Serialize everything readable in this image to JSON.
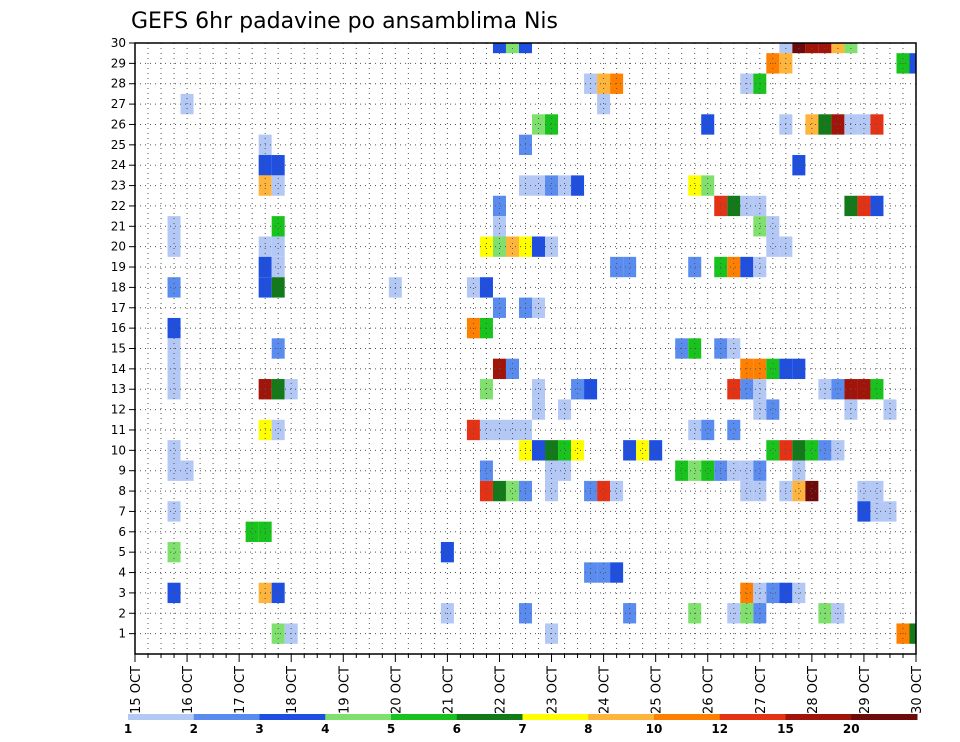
{
  "chart_data": {
    "type": "heatmap",
    "title": "GEFS 6hr padavine po ansamblima Nis",
    "xlabel": "",
    "ylabel": "",
    "x_ticks": [
      "15 OCT",
      "16 OCT",
      "17 OCT",
      "18 OCT",
      "19 OCT",
      "20 OCT",
      "21 OCT",
      "22 OCT",
      "23 OCT",
      "24 OCT",
      "25 OCT",
      "26 OCT",
      "27 OCT",
      "28 OCT",
      "29 OCT",
      "30 OCT"
    ],
    "y_ticks": [
      "1",
      "2",
      "3",
      "4",
      "5",
      "6",
      "7",
      "8",
      "9",
      "10",
      "11",
      "12",
      "13",
      "14",
      "15",
      "16",
      "17",
      "18",
      "19",
      "20",
      "21",
      "22",
      "23",
      "24",
      "25",
      "26",
      "27",
      "28",
      "29",
      "30"
    ],
    "xlim": [
      0,
      15
    ],
    "ylim": [
      0,
      30
    ],
    "x_step_days": 0.25,
    "grid": true,
    "colorbar": {
      "ticks": [
        "1",
        "2",
        "3",
        "4",
        "5",
        "6",
        "7",
        "8",
        "10",
        "12",
        "15",
        "20"
      ],
      "colors": [
        "#b4c8f5",
        "#5a8cf0",
        "#1f4fe0",
        "#7fe06e",
        "#19c31e",
        "#127a19",
        "#ffff00",
        "#ffb43c",
        "#ff7f00",
        "#e63214",
        "#a0140a",
        "#6e0a0a"
      ],
      "position": "bottom"
    },
    "cells": [
      [
        7.0,
        30,
        3
      ],
      [
        7.25,
        30,
        4
      ],
      [
        7.5,
        30,
        3
      ],
      [
        12.5,
        30,
        1
      ],
      [
        12.75,
        30,
        12
      ],
      [
        13.0,
        30,
        11
      ],
      [
        13.25,
        30,
        11
      ],
      [
        13.5,
        30,
        8
      ],
      [
        13.75,
        30,
        4
      ],
      [
        12.25,
        29,
        9
      ],
      [
        12.5,
        29,
        8
      ],
      [
        14.75,
        29,
        5
      ],
      [
        15.0,
        29,
        3
      ],
      [
        8.75,
        28,
        1
      ],
      [
        9.0,
        28,
        8
      ],
      [
        9.25,
        28,
        9
      ],
      [
        11.75,
        28,
        1
      ],
      [
        12.0,
        28,
        5
      ],
      [
        1.0,
        27,
        1
      ],
      [
        9.0,
        27,
        1
      ],
      [
        7.75,
        26,
        4
      ],
      [
        8.0,
        26,
        5
      ],
      [
        11.0,
        26,
        3
      ],
      [
        12.5,
        26,
        1
      ],
      [
        13.0,
        26,
        8
      ],
      [
        13.25,
        26,
        6
      ],
      [
        13.5,
        26,
        11
      ],
      [
        13.75,
        26,
        1
      ],
      [
        14.0,
        26,
        1
      ],
      [
        14.25,
        26,
        10
      ],
      [
        2.5,
        25,
        1
      ],
      [
        7.5,
        25,
        2
      ],
      [
        2.5,
        24,
        3
      ],
      [
        2.75,
        24,
        3
      ],
      [
        12.75,
        24,
        3
      ],
      [
        7.5,
        23,
        1
      ],
      [
        7.75,
        23,
        1
      ],
      [
        8.0,
        23,
        2
      ],
      [
        8.25,
        23,
        1
      ],
      [
        8.5,
        23,
        3
      ],
      [
        2.5,
        23,
        8
      ],
      [
        2.75,
        23,
        1
      ],
      [
        10.75,
        23,
        7
      ],
      [
        11.0,
        23,
        4
      ],
      [
        7.0,
        22,
        2
      ],
      [
        11.25,
        22,
        10
      ],
      [
        11.5,
        22,
        6
      ],
      [
        11.75,
        22,
        1
      ],
      [
        12.0,
        22,
        1
      ],
      [
        13.75,
        22,
        6
      ],
      [
        14.0,
        22,
        10
      ],
      [
        14.25,
        22,
        3
      ],
      [
        0.75,
        21,
        1
      ],
      [
        2.75,
        21,
        5
      ],
      [
        7.0,
        21,
        1
      ],
      [
        12.0,
        21,
        4
      ],
      [
        12.25,
        21,
        1
      ],
      [
        0.75,
        20,
        1
      ],
      [
        2.5,
        20,
        1
      ],
      [
        2.75,
        20,
        1
      ],
      [
        6.75,
        20,
        7
      ],
      [
        7.0,
        20,
        4
      ],
      [
        7.25,
        20,
        8
      ],
      [
        7.5,
        20,
        7
      ],
      [
        7.75,
        20,
        3
      ],
      [
        8.0,
        20,
        1
      ],
      [
        12.25,
        20,
        1
      ],
      [
        12.5,
        20,
        1
      ],
      [
        2.5,
        19,
        3
      ],
      [
        2.75,
        19,
        1
      ],
      [
        9.25,
        19,
        2
      ],
      [
        9.5,
        19,
        2
      ],
      [
        10.75,
        19,
        2
      ],
      [
        11.25,
        19,
        5
      ],
      [
        11.5,
        19,
        9
      ],
      [
        11.75,
        19,
        3
      ],
      [
        12.0,
        19,
        1
      ],
      [
        0.75,
        18,
        2
      ],
      [
        2.5,
        18,
        3
      ],
      [
        2.75,
        18,
        6
      ],
      [
        5.0,
        18,
        1
      ],
      [
        6.5,
        18,
        1
      ],
      [
        6.75,
        18,
        3
      ],
      [
        7.0,
        17,
        2
      ],
      [
        7.5,
        17,
        2
      ],
      [
        7.75,
        17,
        1
      ],
      [
        0.75,
        16,
        3
      ],
      [
        6.5,
        16,
        9
      ],
      [
        6.75,
        16,
        5
      ],
      [
        0.75,
        15,
        1
      ],
      [
        2.75,
        15,
        2
      ],
      [
        10.5,
        15,
        2
      ],
      [
        10.75,
        15,
        5
      ],
      [
        11.25,
        15,
        2
      ],
      [
        11.5,
        15,
        1
      ],
      [
        0.75,
        14,
        1
      ],
      [
        7.0,
        14,
        11
      ],
      [
        7.25,
        14,
        2
      ],
      [
        11.75,
        14,
        9
      ],
      [
        12.0,
        14,
        9
      ],
      [
        12.25,
        14,
        5
      ],
      [
        12.5,
        14,
        3
      ],
      [
        12.75,
        14,
        3
      ],
      [
        0.75,
        13,
        1
      ],
      [
        2.5,
        13,
        11
      ],
      [
        2.75,
        13,
        6
      ],
      [
        3.0,
        13,
        1
      ],
      [
        6.75,
        13,
        4
      ],
      [
        7.75,
        13,
        1
      ],
      [
        8.5,
        13,
        2
      ],
      [
        8.75,
        13,
        3
      ],
      [
        11.5,
        13,
        10
      ],
      [
        11.75,
        13,
        2
      ],
      [
        12.0,
        13,
        1
      ],
      [
        13.25,
        13,
        1
      ],
      [
        13.5,
        13,
        2
      ],
      [
        13.75,
        13,
        11
      ],
      [
        14.0,
        13,
        11
      ],
      [
        14.25,
        13,
        5
      ],
      [
        7.75,
        12,
        1
      ],
      [
        8.25,
        12,
        1
      ],
      [
        12.0,
        12,
        1
      ],
      [
        12.25,
        12,
        2
      ],
      [
        13.75,
        12,
        1
      ],
      [
        14.5,
        12,
        1
      ],
      [
        2.5,
        11,
        7
      ],
      [
        2.75,
        11,
        1
      ],
      [
        6.5,
        11,
        10
      ],
      [
        6.75,
        11,
        1
      ],
      [
        7.0,
        11,
        1
      ],
      [
        7.25,
        11,
        1
      ],
      [
        7.5,
        11,
        1
      ],
      [
        10.75,
        11,
        1
      ],
      [
        11.0,
        11,
        2
      ],
      [
        11.5,
        11,
        2
      ],
      [
        0.75,
        10,
        1
      ],
      [
        7.5,
        10,
        7
      ],
      [
        7.75,
        10,
        3
      ],
      [
        8.0,
        10,
        6
      ],
      [
        8.25,
        10,
        5
      ],
      [
        8.5,
        10,
        7
      ],
      [
        9.5,
        10,
        3
      ],
      [
        9.75,
        10,
        7
      ],
      [
        10.0,
        10,
        3
      ],
      [
        12.25,
        10,
        5
      ],
      [
        12.5,
        10,
        10
      ],
      [
        12.75,
        10,
        6
      ],
      [
        13.0,
        10,
        5
      ],
      [
        13.25,
        10,
        2
      ],
      [
        13.5,
        10,
        1
      ],
      [
        0.75,
        9,
        1
      ],
      [
        1.0,
        9,
        1
      ],
      [
        6.75,
        9,
        2
      ],
      [
        8.0,
        9,
        1
      ],
      [
        8.25,
        9,
        1
      ],
      [
        10.5,
        9,
        5
      ],
      [
        10.75,
        9,
        4
      ],
      [
        11.0,
        9,
        5
      ],
      [
        11.25,
        9,
        2
      ],
      [
        11.5,
        9,
        1
      ],
      [
        11.75,
        9,
        1
      ],
      [
        12.0,
        9,
        2
      ],
      [
        12.75,
        9,
        1
      ],
      [
        6.75,
        8,
        10
      ],
      [
        7.0,
        8,
        6
      ],
      [
        7.25,
        8,
        4
      ],
      [
        7.5,
        8,
        2
      ],
      [
        8.0,
        8,
        1
      ],
      [
        8.75,
        8,
        2
      ],
      [
        9.0,
        8,
        10
      ],
      [
        9.25,
        8,
        1
      ],
      [
        11.75,
        8,
        1
      ],
      [
        12.0,
        8,
        1
      ],
      [
        12.5,
        8,
        1
      ],
      [
        12.75,
        8,
        8
      ],
      [
        13.0,
        8,
        12
      ],
      [
        14.0,
        8,
        1
      ],
      [
        14.25,
        8,
        1
      ],
      [
        0.75,
        7,
        1
      ],
      [
        14.0,
        7,
        3
      ],
      [
        14.25,
        7,
        1
      ],
      [
        14.5,
        7,
        1
      ],
      [
        2.25,
        6,
        5
      ],
      [
        2.5,
        6,
        5
      ],
      [
        0.75,
        5,
        4
      ],
      [
        6.0,
        5,
        3
      ],
      [
        8.75,
        4,
        2
      ],
      [
        9.0,
        4,
        2
      ],
      [
        9.25,
        4,
        3
      ],
      [
        0.75,
        3,
        3
      ],
      [
        2.5,
        3,
        8
      ],
      [
        2.75,
        3,
        3
      ],
      [
        11.75,
        3,
        9
      ],
      [
        12.0,
        3,
        1
      ],
      [
        12.25,
        3,
        2
      ],
      [
        12.5,
        3,
        3
      ],
      [
        12.75,
        3,
        1
      ],
      [
        6.0,
        2,
        1
      ],
      [
        7.5,
        2,
        2
      ],
      [
        9.5,
        2,
        2
      ],
      [
        10.75,
        2,
        4
      ],
      [
        11.5,
        2,
        1
      ],
      [
        11.75,
        2,
        4
      ],
      [
        12.0,
        2,
        2
      ],
      [
        13.25,
        2,
        4
      ],
      [
        13.5,
        2,
        1
      ],
      [
        2.75,
        1,
        4
      ],
      [
        3.0,
        1,
        1
      ],
      [
        8.0,
        1,
        1
      ],
      [
        14.75,
        1,
        9
      ],
      [
        15.0,
        1,
        6
      ]
    ]
  }
}
